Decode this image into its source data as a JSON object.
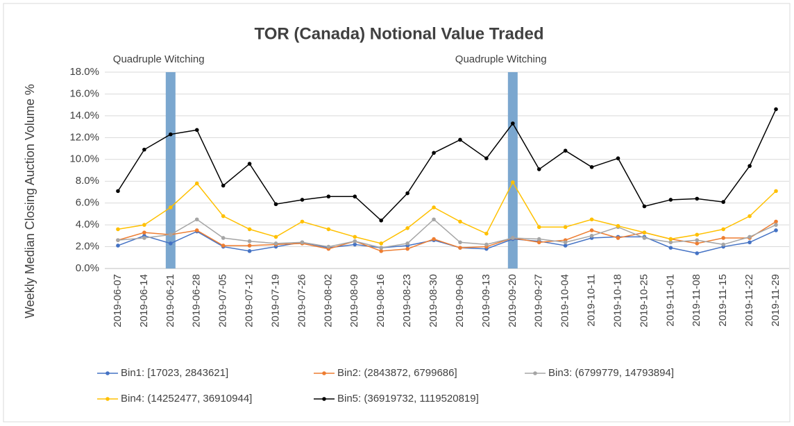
{
  "chart_data": {
    "type": "line",
    "title": "TOR (Canada) Notional Value Traded",
    "y_label": "Weekly Median Closing Auction Volume %",
    "categories": [
      "2019-06-07",
      "2019-06-14",
      "2019-06-21",
      "2019-06-28",
      "2019-07-05",
      "2019-07-12",
      "2019-07-19",
      "2019-07-26",
      "2019-08-02",
      "2019-08-09",
      "2019-08-16",
      "2019-08-23",
      "2019-08-30",
      "2019-09-06",
      "2019-09-13",
      "2019-09-20",
      "2019-09-27",
      "2019-10-04",
      "2019-10-11",
      "2019-10-18",
      "2019-10-25",
      "2019-11-01",
      "2019-11-08",
      "2019-11-15",
      "2019-11-22",
      "2019-11-29"
    ],
    "series": [
      {
        "name": "Bin1: [17023, 2843621]",
        "color": "#4472c4",
        "values": [
          2.1,
          3.0,
          2.3,
          3.4,
          2.0,
          1.6,
          2.0,
          2.4,
          1.9,
          2.2,
          1.9,
          2.1,
          2.6,
          1.9,
          1.8,
          2.7,
          2.5,
          2.1,
          2.8,
          2.9,
          2.9,
          1.9,
          1.4,
          2.0,
          2.4,
          3.5
        ]
      },
      {
        "name": "Bin2: (2843872, 6799686]",
        "color": "#ed7d31",
        "values": [
          2.6,
          3.3,
          3.1,
          3.5,
          2.1,
          2.1,
          2.2,
          2.3,
          1.8,
          2.5,
          1.6,
          1.8,
          2.7,
          1.9,
          2.0,
          2.8,
          2.4,
          2.6,
          3.5,
          2.8,
          3.3,
          2.7,
          2.3,
          2.8,
          2.8,
          4.3
        ]
      },
      {
        "name": "Bin3: (6799779, 14793894]",
        "color": "#a5a5a5",
        "values": [
          2.6,
          2.8,
          3.1,
          4.5,
          2.8,
          2.5,
          2.3,
          2.4,
          2.0,
          2.5,
          1.9,
          2.3,
          4.5,
          2.4,
          2.2,
          2.8,
          2.7,
          2.4,
          3.0,
          3.8,
          2.8,
          2.4,
          2.6,
          2.2,
          2.9,
          4.0
        ]
      },
      {
        "name": "Bin4: (14252477, 36910944]",
        "color": "#ffc000",
        "values": [
          3.6,
          4.0,
          5.6,
          7.8,
          4.8,
          3.6,
          2.9,
          4.3,
          3.6,
          2.9,
          2.3,
          3.7,
          5.6,
          4.3,
          3.2,
          7.9,
          3.8,
          3.8,
          4.5,
          3.9,
          3.3,
          2.7,
          3.1,
          3.6,
          4.8,
          7.1
        ]
      },
      {
        "name": "Bin5: (36919732, 1119520819]",
        "color": "#000000",
        "values": [
          7.1,
          10.9,
          12.3,
          12.7,
          7.6,
          9.6,
          5.9,
          6.3,
          6.6,
          6.6,
          4.4,
          6.9,
          10.6,
          11.8,
          10.1,
          13.3,
          9.1,
          10.8,
          9.3,
          10.1,
          5.7,
          6.3,
          6.4,
          6.1,
          9.4,
          14.6
        ]
      }
    ],
    "annotations": [
      {
        "text": "Quadruple Witching",
        "x": "2019-06-21"
      },
      {
        "text": "Quadruple Witching",
        "x": "2019-09-20"
      }
    ],
    "highlight_color": "#7ba7cf",
    "ylim": [
      0,
      18
    ],
    "yticks": [
      {
        "value": 0,
        "label": "0.0%"
      },
      {
        "value": 2,
        "label": "2.0%"
      },
      {
        "value": 4,
        "label": "4.0%"
      },
      {
        "value": 6,
        "label": "6.0%"
      },
      {
        "value": 8,
        "label": "8.0%"
      },
      {
        "value": 10,
        "label": "10.0%"
      },
      {
        "value": 12,
        "label": "12.0%"
      },
      {
        "value": 14,
        "label": "14.0%"
      },
      {
        "value": 16,
        "label": "16.0%"
      },
      {
        "value": 18,
        "label": "18.0%"
      }
    ],
    "grid": true,
    "legend": "bottom"
  }
}
